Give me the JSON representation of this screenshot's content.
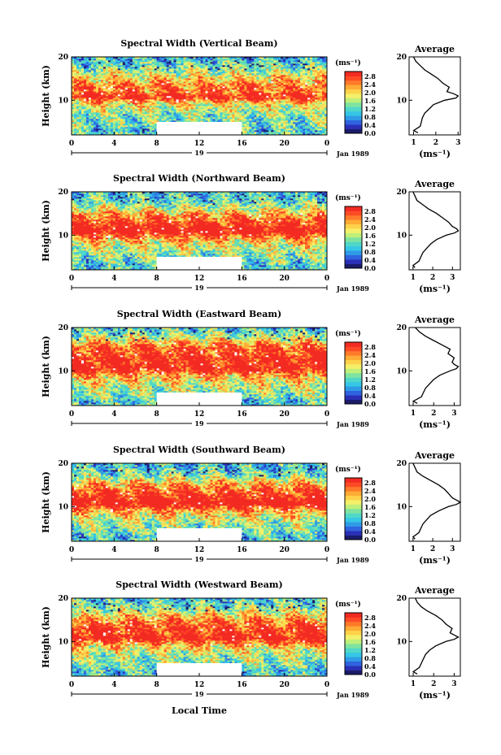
{
  "figure": {
    "x_axis_label": "Local Time",
    "date_label": "Jan 1989",
    "day_label": "19"
  },
  "colors": {
    "scale": [
      "#1b1b6b",
      "#2a2fb8",
      "#2f63e0",
      "#2f9be6",
      "#36c6e6",
      "#4fd8c8",
      "#7fe3a0",
      "#bff07a",
      "#f4f06a",
      "#ffd24a",
      "#ffab35",
      "#ff7a2a",
      "#ff4a26",
      "#f22a22"
    ],
    "gap": "#ffffff"
  },
  "chart_data": [
    {
      "type": "heatmap",
      "title": "Spectral Width (Vertical Beam)",
      "xlabel": "",
      "ylabel": "Height (km)",
      "x_ticks": [
        "0",
        "4",
        "8",
        "12",
        "16",
        "20",
        "0"
      ],
      "x_range_hours": [
        0,
        24
      ],
      "y_ticks": [
        "10",
        "20"
      ],
      "y_range_km": [
        2,
        20
      ],
      "data_gap": {
        "x_hours": [
          8,
          16
        ],
        "y_km": [
          2,
          5
        ]
      },
      "colorbar": {
        "unit": "(ms⁻¹)",
        "ticks": [
          "2.8",
          "2.4",
          "2.0",
          "1.6",
          "1.2",
          "0.8",
          "0.4",
          "0.0"
        ],
        "range": [
          0,
          3.0
        ]
      },
      "profile": {
        "title": "Average",
        "xlabel": "(ms⁻¹)",
        "x_ticks": [
          "1",
          "2",
          "3"
        ],
        "xlim": [
          0.8,
          3.1
        ],
        "y_ticks": [
          "10",
          "20"
        ],
        "heights_km": [
          2.5,
          3,
          4,
          5,
          6,
          7,
          8,
          9,
          10,
          10.5,
          11,
          11.5,
          12,
          13,
          14,
          15,
          16,
          17,
          18,
          19,
          20
        ],
        "values": [
          1.2,
          1.0,
          1.3,
          1.35,
          1.4,
          1.5,
          1.7,
          1.9,
          2.4,
          2.9,
          3.0,
          2.8,
          2.5,
          2.6,
          2.3,
          2.1,
          1.8,
          1.5,
          1.3,
          1.1,
          1.0
        ]
      }
    },
    {
      "type": "heatmap",
      "title": "Spectral Width (Northward Beam)",
      "xlabel": "",
      "ylabel": "Height (km)",
      "x_ticks": [
        "0",
        "4",
        "8",
        "12",
        "16",
        "20",
        "0"
      ],
      "x_range_hours": [
        0,
        24
      ],
      "y_ticks": [
        "10",
        "20"
      ],
      "y_range_km": [
        2,
        20
      ],
      "data_gap": {
        "x_hours": [
          8,
          16
        ],
        "y_km": [
          2,
          5
        ]
      },
      "colorbar": {
        "unit": "(ms⁻¹)",
        "ticks": [
          "2.8",
          "2.4",
          "2.0",
          "1.6",
          "1.2",
          "0.8",
          "0.4",
          "0.0"
        ],
        "range": [
          0,
          3.0
        ]
      },
      "profile": {
        "title": "Average",
        "xlabel": "(ms⁻¹)",
        "x_ticks": [
          "1",
          "2",
          "3"
        ],
        "xlim": [
          0.8,
          3.4
        ],
        "y_ticks": [
          "10",
          "20"
        ],
        "heights_km": [
          2.5,
          3,
          4,
          5,
          6,
          7,
          8,
          9,
          10,
          10.5,
          11,
          11.5,
          12,
          13,
          14,
          15,
          16,
          17,
          18,
          19,
          20
        ],
        "values": [
          1.1,
          1.0,
          1.3,
          1.4,
          1.5,
          1.7,
          1.9,
          2.2,
          2.7,
          3.1,
          3.3,
          3.2,
          3.0,
          2.8,
          2.5,
          2.2,
          1.8,
          1.5,
          1.2,
          1.1,
          1.0
        ]
      }
    },
    {
      "type": "heatmap",
      "title": "Spectral Width (Eastward Beam)",
      "xlabel": "",
      "ylabel": "Height (km)",
      "x_ticks": [
        "0",
        "4",
        "8",
        "12",
        "16",
        "20",
        "0"
      ],
      "x_range_hours": [
        0,
        24
      ],
      "y_ticks": [
        "10",
        "20"
      ],
      "y_range_km": [
        2,
        20
      ],
      "data_gap": {
        "x_hours": [
          8,
          16
        ],
        "y_km": [
          2,
          5
        ]
      },
      "colorbar": {
        "unit": "(ms⁻¹)",
        "ticks": [
          "2.8",
          "2.4",
          "2.0",
          "1.6",
          "1.2",
          "0.8",
          "0.4",
          "0.0"
        ],
        "range": [
          0,
          3.0
        ]
      },
      "profile": {
        "title": "Average",
        "xlabel": "(ms⁻¹)",
        "x_ticks": [
          "1",
          "2",
          "3"
        ],
        "xlim": [
          0.8,
          3.3
        ],
        "y_ticks": [
          "10",
          "20"
        ],
        "heights_km": [
          2.5,
          3,
          4,
          5,
          6,
          7,
          8,
          9,
          10,
          10.5,
          11,
          11.5,
          12,
          13,
          14,
          15,
          16,
          17,
          18,
          19,
          20
        ],
        "values": [
          1.2,
          1.0,
          1.4,
          1.5,
          1.6,
          1.8,
          2.0,
          2.3,
          2.8,
          3.1,
          3.2,
          3.0,
          2.9,
          3.0,
          2.7,
          2.8,
          2.4,
          2.0,
          1.6,
          1.3,
          1.1
        ]
      }
    },
    {
      "type": "heatmap",
      "title": "Spectral Width (Southward Beam)",
      "xlabel": "",
      "ylabel": "Height (km)",
      "x_ticks": [
        "0",
        "4",
        "8",
        "12",
        "16",
        "20",
        "0"
      ],
      "x_range_hours": [
        0,
        24
      ],
      "y_ticks": [
        "10",
        "20"
      ],
      "y_range_km": [
        2,
        20
      ],
      "data_gap": {
        "x_hours": [
          8,
          16
        ],
        "y_km": [
          2,
          5
        ]
      },
      "colorbar": {
        "unit": "(ms⁻¹)",
        "ticks": [
          "2.8",
          "2.4",
          "2.0",
          "1.6",
          "1.2",
          "0.8",
          "0.4",
          "0.0"
        ],
        "range": [
          0,
          3.0
        ]
      },
      "profile": {
        "title": "Average",
        "xlabel": "(ms⁻¹)",
        "x_ticks": [
          "1",
          "2",
          "3"
        ],
        "xlim": [
          0.8,
          3.4
        ],
        "y_ticks": [
          "10",
          "20"
        ],
        "heights_km": [
          2.5,
          3,
          4,
          5,
          6,
          7,
          8,
          9,
          10,
          10.5,
          11,
          11.5,
          12,
          13,
          14,
          15,
          16,
          17,
          18,
          19,
          20
        ],
        "values": [
          1.1,
          1.0,
          1.3,
          1.4,
          1.5,
          1.7,
          1.9,
          2.3,
          2.8,
          3.2,
          3.4,
          3.2,
          3.0,
          2.8,
          2.6,
          2.3,
          1.9,
          1.5,
          1.2,
          1.1,
          1.0
        ]
      }
    },
    {
      "type": "heatmap",
      "title": "Spectral Width (Westward Beam)",
      "xlabel": "",
      "ylabel": "Height (km)",
      "x_ticks": [
        "0",
        "4",
        "8",
        "12",
        "16",
        "20",
        "0"
      ],
      "x_range_hours": [
        0,
        24
      ],
      "y_ticks": [
        "10",
        "20"
      ],
      "y_range_km": [
        2,
        20
      ],
      "data_gap": {
        "x_hours": [
          8,
          16
        ],
        "y_km": [
          2,
          5
        ]
      },
      "colorbar": {
        "unit": "(ms⁻¹)",
        "ticks": [
          "2.8",
          "2.4",
          "2.0",
          "1.6",
          "1.2",
          "0.8",
          "0.4",
          "0.0"
        ],
        "range": [
          0,
          3.0
        ]
      },
      "profile": {
        "title": "Average",
        "xlabel": "(ms⁻¹)",
        "x_ticks": [
          "1",
          "2",
          "3"
        ],
        "xlim": [
          0.8,
          3.3
        ],
        "y_ticks": [
          "10",
          "20"
        ],
        "heights_km": [
          2.5,
          3,
          4,
          5,
          6,
          7,
          8,
          9,
          10,
          10.5,
          11,
          11.5,
          12,
          13,
          14,
          15,
          16,
          17,
          18,
          19,
          20
        ],
        "values": [
          1.2,
          1.0,
          1.3,
          1.4,
          1.5,
          1.6,
          1.8,
          2.1,
          2.6,
          3.0,
          3.2,
          3.0,
          2.8,
          2.9,
          2.6,
          2.4,
          2.1,
          1.7,
          1.4,
          1.2,
          1.1
        ]
      }
    }
  ]
}
